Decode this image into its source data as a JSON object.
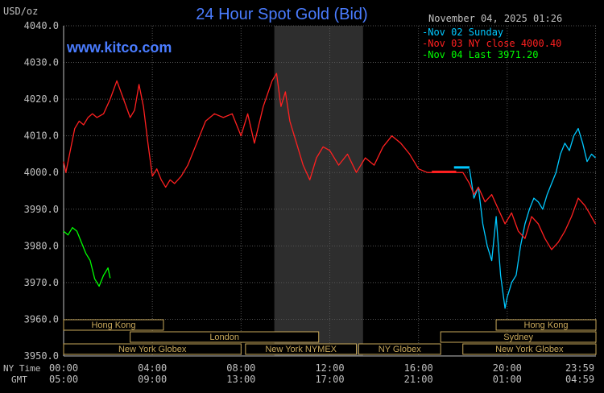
{
  "chart_data": {
    "type": "line",
    "title": "24 Hour Spot Gold (Bid)",
    "ylabel": "USD/oz",
    "timestamp": "November 04, 2025 01:26",
    "watermark": "www.kitco.com",
    "ylim": [
      3950,
      4040
    ],
    "y_ticks": [
      "3950.0",
      "3960.0",
      "3970.0",
      "3980.0",
      "3990.0",
      "4000.0",
      "4010.0",
      "4020.0",
      "4030.0",
      "4040.0"
    ],
    "y_tick_values": [
      3950,
      3960,
      3970,
      3980,
      3990,
      4000,
      4010,
      4020,
      4030,
      4040
    ],
    "x_domain_hours": [
      0,
      24
    ],
    "x_tick_hours": [
      0,
      4,
      8,
      12,
      16,
      20,
      23.983
    ],
    "x_ticks_ny": [
      "00:00",
      "04:00",
      "08:00",
      "12:00",
      "16:00",
      "20:00",
      "23:59"
    ],
    "x_ticks_gmt": [
      "05:00",
      "09:00",
      "13:00",
      "17:00",
      "21:00",
      "01:00",
      "04:59"
    ],
    "row_label_ny": "NY Time",
    "row_label_gmt": "GMT",
    "grid": true,
    "legend_position": "top-right",
    "shaded_region_hours": [
      9.5,
      13.5
    ],
    "sessions": [
      {
        "label": "Hong Kong",
        "row": 1,
        "start": 0,
        "end": 4.5
      },
      {
        "label": "Hong Kong",
        "row": 1,
        "start": 19.5,
        "end": 24
      },
      {
        "label": "London",
        "row": 2,
        "start": 3,
        "end": 11.5
      },
      {
        "label": "Sydney",
        "row": 2,
        "start": 17,
        "end": 24
      },
      {
        "label": "New York Globex",
        "row": 3,
        "start": 0,
        "end": 8
      },
      {
        "label": "New York NYMEX",
        "row": 3,
        "start": 8.2,
        "end": 13.2
      },
      {
        "label": "NY Globex",
        "row": 3,
        "start": 13.3,
        "end": 17
      },
      {
        "label": "New York Globex",
        "row": 3,
        "start": 18,
        "end": 24
      }
    ],
    "series": [
      {
        "name": "Nov 02 Sunday",
        "legend": "Nov 02 Sunday",
        "color": "#00c8ff",
        "x": [
          18.3,
          18.5,
          18.7,
          18.9,
          19.1,
          19.3,
          19.5,
          19.7,
          19.9,
          20.0,
          20.1,
          20.2,
          20.4,
          20.6,
          20.8,
          21.0,
          21.2,
          21.4,
          21.6,
          21.8,
          22.0,
          22.2,
          22.4,
          22.6,
          22.8,
          23.0,
          23.2,
          23.4,
          23.6,
          23.8,
          23.98
        ],
        "y": [
          4001,
          3993,
          3996,
          3986,
          3980,
          3976,
          3988,
          3972,
          3963,
          3966,
          3968,
          3970,
          3972,
          3980,
          3986,
          3990,
          3993,
          3992,
          3990,
          3994,
          3997,
          4000,
          4005,
          4008,
          4006,
          4010,
          4012,
          4008,
          4003,
          4005,
          4004
        ]
      },
      {
        "name": "Nov 03 NY close 4000.40",
        "legend": "Nov 03 NY close 4000.40",
        "color": "#ff2020",
        "x": [
          0,
          0.1,
          0.3,
          0.5,
          0.7,
          0.9,
          1.1,
          1.3,
          1.5,
          1.8,
          2.1,
          2.4,
          2.7,
          3.0,
          3.2,
          3.4,
          3.6,
          3.8,
          4.0,
          4.2,
          4.4,
          4.6,
          4.8,
          5.0,
          5.3,
          5.6,
          6.0,
          6.4,
          6.8,
          7.2,
          7.6,
          8.0,
          8.3,
          8.6,
          9.0,
          9.4,
          9.6,
          9.8,
          10.0,
          10.2,
          10.5,
          10.8,
          11.1,
          11.4,
          11.7,
          12.0,
          12.4,
          12.8,
          13.2,
          13.6,
          14.0,
          14.4,
          14.8,
          15.2,
          15.6,
          16.0,
          16.4,
          16.8,
          17.2,
          17.6,
          18.0,
          18.3,
          18.5,
          18.7,
          19.0,
          19.3,
          19.6,
          19.9,
          20.2,
          20.5,
          20.8,
          21.1,
          21.4,
          21.7,
          22.0,
          22.3,
          22.6,
          22.9,
          23.2,
          23.5,
          23.7,
          23.98
        ],
        "y": [
          4003,
          4000,
          4006,
          4012,
          4014,
          4013,
          4015,
          4016,
          4015,
          4016,
          4020,
          4025,
          4020,
          4015,
          4017,
          4024,
          4018,
          4008,
          3999,
          4001,
          3998,
          3996,
          3998,
          3997,
          3999,
          4002,
          4008,
          4014,
          4016,
          4015,
          4016,
          4010,
          4016,
          4008,
          4018,
          4025,
          4027,
          4018,
          4022,
          4014,
          4008,
          4002,
          3998,
          4004,
          4007,
          4006,
          4002,
          4005,
          4000,
          4004,
          4002,
          4007,
          4010,
          4008,
          4005,
          4001,
          4000,
          4000,
          4000,
          4000,
          4000,
          3997,
          3994,
          3996,
          3992,
          3994,
          3990,
          3986,
          3989,
          3984,
          3982,
          3988,
          3986,
          3982,
          3979,
          3981,
          3984,
          3988,
          3993,
          3991,
          3989,
          3986
        ]
      },
      {
        "name": "Nov 04 Last 3971.20",
        "legend": "Nov 04 Last 3971.20",
        "color": "#00ff00",
        "x": [
          0,
          0.2,
          0.4,
          0.6,
          0.8,
          1.0,
          1.2,
          1.4,
          1.6,
          1.8,
          2.0,
          2.1
        ],
        "y": [
          3984,
          3983,
          3985,
          3984,
          3981,
          3978,
          3976,
          3971,
          3969,
          3972,
          3974,
          3971.2
        ]
      }
    ]
  }
}
